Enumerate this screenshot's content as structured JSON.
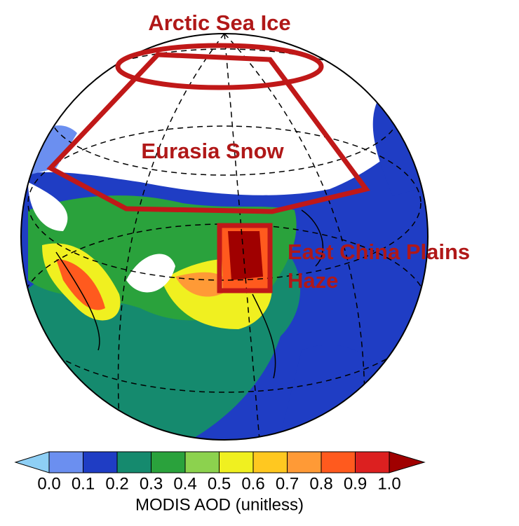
{
  "annotations": {
    "arctic": "Arctic Sea Ice",
    "eurasia": "Eurasia Snow",
    "china_1": "East China Plains",
    "china_2": "Haze"
  },
  "colorbar": {
    "title": "MODIS AOD (unitless)",
    "ticks": [
      "0.0",
      "0.1",
      "0.2",
      "0.3",
      "0.4",
      "0.5",
      "0.6",
      "0.7",
      "0.8",
      "0.9",
      "1.0"
    ],
    "colors": [
      "#8ecff5",
      "#6b8ff0",
      "#1f3dc4",
      "#158a6e",
      "#2aa23c",
      "#8cd24e",
      "#f0f020",
      "#ffc820",
      "#ff9a36",
      "#ff5a1e",
      "#dc2020",
      "#a00000"
    ]
  }
}
